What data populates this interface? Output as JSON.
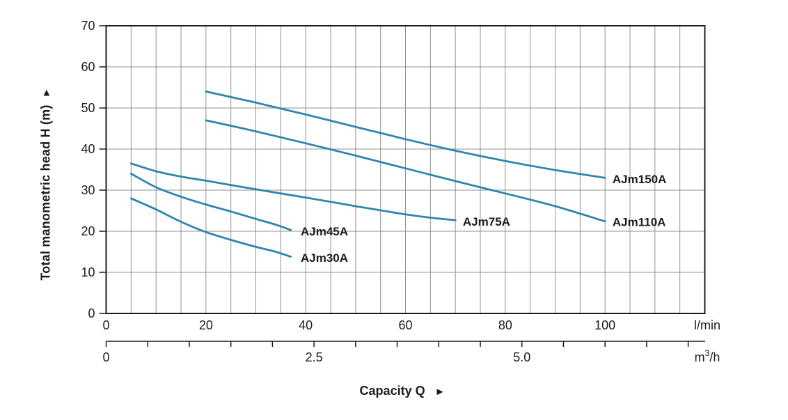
{
  "chart_data": {
    "type": "line",
    "title": "",
    "xlabel": "Capacity Q",
    "xlabel_arrow": "►",
    "ylabel": "Total manometric head H (m)",
    "ylabel_arrow": "▲",
    "x_units": [
      "l/min",
      "m³/h"
    ],
    "xlim": [
      0,
      120
    ],
    "ylim": [
      0,
      70
    ],
    "grid": true,
    "x_grid_step_lmin": 5,
    "y_grid_step_m": 10,
    "x_tick_values_lmin": [
      0,
      20,
      40,
      60,
      80,
      100
    ],
    "y_tick_values_m": [
      0,
      10,
      20,
      30,
      40,
      50,
      60,
      70
    ],
    "m3h_axis": {
      "lmin_per_m3h": 16.6667,
      "tick_step": 0.5,
      "max_tick": 7.0,
      "labels": [
        {
          "value": 0,
          "text": "0"
        },
        {
          "value": 2.5,
          "text": "2.5"
        },
        {
          "value": 5.0,
          "text": "5.0"
        }
      ]
    },
    "colors": {
      "curve": "#2f86ad",
      "grid": "#909090",
      "axis": "#1c1c1c",
      "text": "#1c1c1c"
    },
    "series": [
      {
        "name": "AJm150A",
        "points": [
          [
            20,
            54
          ],
          [
            30,
            51.3
          ],
          [
            40,
            48.4
          ],
          [
            50,
            45.4
          ],
          [
            60,
            42.4
          ],
          [
            70,
            39.6
          ],
          [
            80,
            37.1
          ],
          [
            90,
            34.9
          ],
          [
            100,
            33
          ]
        ],
        "label_at": [
          101.5,
          32.7
        ]
      },
      {
        "name": "AJm110A",
        "points": [
          [
            20,
            47
          ],
          [
            30,
            44.3
          ],
          [
            40,
            41.4
          ],
          [
            50,
            38.4
          ],
          [
            60,
            35.3
          ],
          [
            70,
            32.2
          ],
          [
            80,
            29.2
          ],
          [
            90,
            26.1
          ],
          [
            100,
            22.4
          ]
        ],
        "label_at": [
          101.5,
          22.3
        ]
      },
      {
        "name": "AJm75A",
        "points": [
          [
            5,
            36.5
          ],
          [
            10,
            34.6
          ],
          [
            15,
            33.3
          ],
          [
            20,
            32.3
          ],
          [
            30,
            30.2
          ],
          [
            40,
            28.2
          ],
          [
            50,
            26.1
          ],
          [
            60,
            24.1
          ],
          [
            65,
            23.3
          ],
          [
            70,
            22.7
          ]
        ],
        "label_at": [
          71.5,
          22.4
        ]
      },
      {
        "name": "AJm45A",
        "points": [
          [
            5,
            34
          ],
          [
            10,
            30.7
          ],
          [
            15,
            28.4
          ],
          [
            20,
            26.5
          ],
          [
            25,
            24.8
          ],
          [
            30,
            23
          ],
          [
            34,
            21.6
          ],
          [
            37,
            20.3
          ]
        ],
        "label_at": [
          39,
          20
        ]
      },
      {
        "name": "AJm30A",
        "points": [
          [
            5,
            28
          ],
          [
            10,
            25.3
          ],
          [
            15,
            22.3
          ],
          [
            20,
            19.8
          ],
          [
            25,
            17.9
          ],
          [
            30,
            16.2
          ],
          [
            34,
            15
          ],
          [
            37,
            13.8
          ]
        ],
        "label_at": [
          39,
          13.6
        ]
      }
    ]
  }
}
